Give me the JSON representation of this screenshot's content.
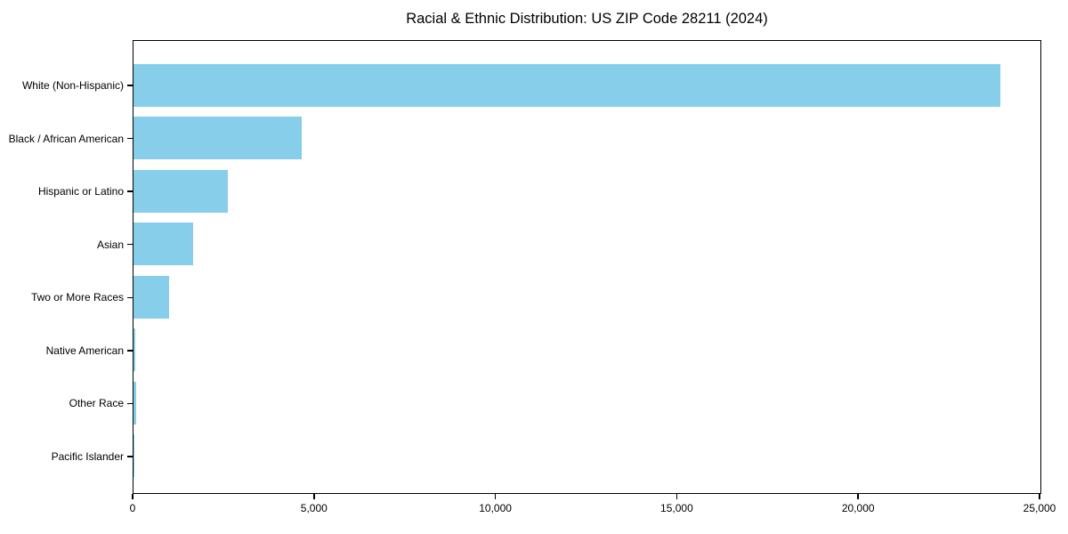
{
  "figure": {
    "background": "#FFFFFF",
    "text_color": "#000000"
  },
  "chart_data": {
    "type": "bar",
    "orientation": "horizontal",
    "title": "Racial & Ethnic Distribution: US ZIP Code 28211 (2024)",
    "categories": [
      "White (Non-Hispanic)",
      "Black / African American",
      "Hispanic or Latino",
      "Asian",
      "Two or More Races",
      "Native American",
      "Other Race",
      "Pacific Islander"
    ],
    "values": [
      23890,
      4640,
      2600,
      1650,
      980,
      60,
      80,
      15
    ],
    "xlabel": "",
    "ylabel": "",
    "xlim": [
      0,
      25050
    ],
    "x_ticks": [
      0,
      5000,
      10000,
      15000,
      20000,
      25000
    ],
    "x_tick_labels": [
      "0",
      "5,000",
      "10,000",
      "15,000",
      "20,000",
      "25,000"
    ],
    "bar_color": "#87CEEB",
    "axis_color": "#000000",
    "grid": false,
    "legend": "none"
  }
}
